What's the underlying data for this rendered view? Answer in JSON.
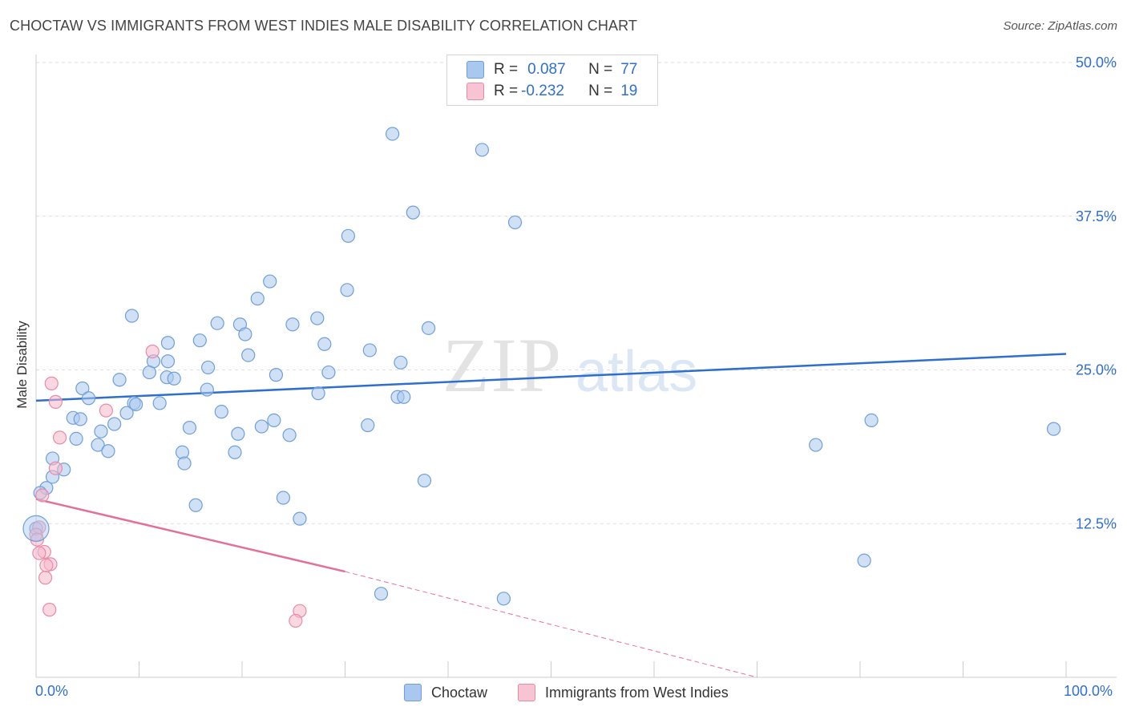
{
  "title": "CHOCTAW VS IMMIGRANTS FROM WEST INDIES MALE DISABILITY CORRELATION CHART",
  "source": "Source: ZipAtlas.com",
  "watermark": {
    "zip": "ZIP",
    "atlas": "atlas"
  },
  "legend_top": {
    "choctaw": {
      "r_label": "R =",
      "r_value": "0.087",
      "n_label": "N =",
      "n_value": "77"
    },
    "west_indies": {
      "r_label": "R =",
      "r_value": "-0.232",
      "n_label": "N =",
      "n_value": "19"
    }
  },
  "legend_bottom": {
    "choctaw": "Choctaw",
    "west_indies": "Immigrants from West Indies"
  },
  "colors": {
    "choctaw_fill": "#a9c8ef",
    "choctaw_stroke": "#6f9fd8",
    "choctaw_line": "#2e6fcd",
    "west_fill": "#f6b8cb",
    "west_stroke": "#e98aa8",
    "west_line": "#e2719a",
    "axis_label": "#2f6fcf",
    "grid": "#dddddd"
  },
  "chart_data": {
    "type": "scatter",
    "title": "CHOCTAW VS IMMIGRANTS FROM WEST INDIES MALE DISABILITY CORRELATION CHART",
    "xlabel": "",
    "ylabel": "Male Disability",
    "xlim": [
      0,
      100
    ],
    "ylim": [
      0,
      50
    ],
    "x_tick_labels": [
      "0.0%",
      "100.0%"
    ],
    "y_ticks": [
      12.5,
      25.0,
      37.5,
      50.0
    ],
    "y_tick_labels": [
      "12.5%",
      "25.0%",
      "37.5%",
      "50.0%"
    ],
    "grid": true,
    "series": [
      {
        "name": "Choctaw",
        "points": [
          [
            34.6,
            44.2
          ],
          [
            43.3,
            42.9
          ],
          [
            36.6,
            37.8
          ],
          [
            46.5,
            37.0
          ],
          [
            30.3,
            35.9
          ],
          [
            22.7,
            32.2
          ],
          [
            30.2,
            31.5
          ],
          [
            21.5,
            30.8
          ],
          [
            9.3,
            29.4
          ],
          [
            27.3,
            29.2
          ],
          [
            17.6,
            28.8
          ],
          [
            24.9,
            28.7
          ],
          [
            19.8,
            28.7
          ],
          [
            38.1,
            28.4
          ],
          [
            20.3,
            27.9
          ],
          [
            15.9,
            27.4
          ],
          [
            12.8,
            27.2
          ],
          [
            28.0,
            27.1
          ],
          [
            32.4,
            26.6
          ],
          [
            20.6,
            26.2
          ],
          [
            12.8,
            25.7
          ],
          [
            11.4,
            25.7
          ],
          [
            35.4,
            25.6
          ],
          [
            16.7,
            25.2
          ],
          [
            11.0,
            24.8
          ],
          [
            28.4,
            24.8
          ],
          [
            23.3,
            24.6
          ],
          [
            12.7,
            24.4
          ],
          [
            13.4,
            24.3
          ],
          [
            8.1,
            24.2
          ],
          [
            4.5,
            23.5
          ],
          [
            16.6,
            23.4
          ],
          [
            27.4,
            23.1
          ],
          [
            5.1,
            22.7
          ],
          [
            35.1,
            22.8
          ],
          [
            35.7,
            22.8
          ],
          [
            9.5,
            22.3
          ],
          [
            12.0,
            22.3
          ],
          [
            9.7,
            22.2
          ],
          [
            18.0,
            21.6
          ],
          [
            8.8,
            21.5
          ],
          [
            3.6,
            21.1
          ],
          [
            4.3,
            21.0
          ],
          [
            23.1,
            20.9
          ],
          [
            81.1,
            20.9
          ],
          [
            7.6,
            20.6
          ],
          [
            32.2,
            20.5
          ],
          [
            21.9,
            20.4
          ],
          [
            14.9,
            20.3
          ],
          [
            6.3,
            20.0
          ],
          [
            19.6,
            19.8
          ],
          [
            24.6,
            19.7
          ],
          [
            98.8,
            20.2
          ],
          [
            3.9,
            19.4
          ],
          [
            6.0,
            18.9
          ],
          [
            75.7,
            18.9
          ],
          [
            7.0,
            18.4
          ],
          [
            14.2,
            18.3
          ],
          [
            19.3,
            18.3
          ],
          [
            1.6,
            17.8
          ],
          [
            14.4,
            17.4
          ],
          [
            2.7,
            16.9
          ],
          [
            1.6,
            16.3
          ],
          [
            37.7,
            16.0
          ],
          [
            1.0,
            15.4
          ],
          [
            0.4,
            15.0
          ],
          [
            24.0,
            14.6
          ],
          [
            15.5,
            14.0
          ],
          [
            25.6,
            12.9
          ],
          [
            0.0,
            12.1
          ],
          [
            80.4,
            9.5
          ],
          [
            33.5,
            6.8
          ],
          [
            45.4,
            6.4
          ]
        ]
      },
      {
        "name": "Immigrants from West Indies",
        "points": [
          [
            11.3,
            26.5
          ],
          [
            1.5,
            23.9
          ],
          [
            1.9,
            22.4
          ],
          [
            6.8,
            21.7
          ],
          [
            2.3,
            19.5
          ],
          [
            1.9,
            17.0
          ],
          [
            0.6,
            14.8
          ],
          [
            0.3,
            12.2
          ],
          [
            0.0,
            11.6
          ],
          [
            0.1,
            11.2
          ],
          [
            0.8,
            10.2
          ],
          [
            0.3,
            10.1
          ],
          [
            1.4,
            9.2
          ],
          [
            1.0,
            9.1
          ],
          [
            0.9,
            8.1
          ],
          [
            1.3,
            5.5
          ],
          [
            25.6,
            5.4
          ],
          [
            25.2,
            4.6
          ]
        ]
      }
    ],
    "trendlines": [
      {
        "name": "Choctaw",
        "x": [
          0,
          100
        ],
        "y": [
          22.5,
          26.3
        ]
      },
      {
        "name": "Immigrants from West Indies",
        "x": [
          0,
          30
        ],
        "y": [
          14.5,
          8.6
        ],
        "dashed_extension_to": [
          70,
          0.0
        ]
      }
    ]
  }
}
